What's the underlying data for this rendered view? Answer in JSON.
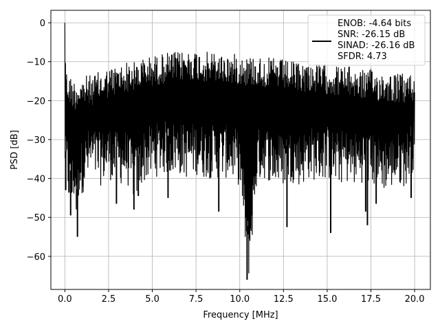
{
  "chart_data": {
    "type": "line",
    "title": "",
    "xlabel": "Frequency [MHz]",
    "ylabel": "PSD [dB]",
    "xlim": [
      -0.8,
      20.9
    ],
    "ylim": [
      -68.5,
      3.2
    ],
    "grid": true,
    "legend_position": "top-right",
    "x_ticks": [
      0.0,
      2.5,
      5.0,
      7.5,
      10.0,
      12.5,
      15.0,
      17.5,
      20.0
    ],
    "x_tick_labels": [
      "0.0",
      "2.5",
      "5.0",
      "7.5",
      "10.0",
      "12.5",
      "15.0",
      "17.5",
      "20.0"
    ],
    "y_ticks": [
      0,
      -10,
      -20,
      -30,
      -40,
      -50,
      -60
    ],
    "y_tick_labels": [
      "0",
      "−10",
      "−20",
      "−30",
      "−40",
      "−50",
      "−60"
    ],
    "legend": [
      "ENOB: -4.64 bits",
      "SNR: -26.15 dB",
      "SINAD: -26.16 dB",
      "SFDR: 4.73"
    ],
    "series": [
      {
        "color": "#000000",
        "x": [
          0.0,
          0.05,
          0.1,
          0.2,
          0.3,
          0.4,
          0.5,
          0.6,
          0.7,
          0.8,
          1.0,
          1.2,
          1.5,
          2.0,
          2.5,
          3.0,
          3.5,
          4.0,
          4.5,
          5.0,
          5.5,
          6.0,
          6.5,
          7.0,
          7.5,
          8.0,
          8.5,
          9.0,
          9.5,
          10.0,
          10.5,
          11.0,
          11.5,
          12.0,
          12.5,
          13.0,
          13.5,
          14.0,
          14.5,
          15.0,
          15.5,
          16.0,
          16.5,
          17.0,
          17.5,
          18.0,
          18.5,
          19.0,
          19.5,
          20.0
        ],
        "upper": [
          0.0,
          -8.0,
          -12.0,
          -13.0,
          -13.5,
          -14.0,
          -14.5,
          -14.5,
          -14.5,
          -14.0,
          -14.0,
          -13.5,
          -13.5,
          -12.5,
          -11.5,
          -11.0,
          -10.0,
          -10.0,
          -9.0,
          -8.5,
          -8.0,
          -7.5,
          -7.5,
          -7.0,
          -7.0,
          -7.5,
          -7.5,
          -8.0,
          -8.0,
          -8.0,
          -8.5,
          -8.5,
          -9.0,
          -9.0,
          -9.5,
          -10.0,
          -10.0,
          -10.0,
          -10.5,
          -10.5,
          -11.0,
          -11.0,
          -11.5,
          -12.0,
          -12.0,
          -12.5,
          -12.5,
          -13.0,
          -13.0,
          -13.0
        ],
        "lower": [
          -37.0,
          -43.0,
          -42.0,
          -46.0,
          -47.5,
          -49.0,
          -46.0,
          -47.0,
          -55.0,
          -44.0,
          -44.0,
          -42.0,
          -40.0,
          -42.0,
          -40.0,
          -42.0,
          -41.0,
          -46.0,
          -41.0,
          -40.0,
          -39.0,
          -39.0,
          -39.0,
          -40.0,
          -39.0,
          -40.0,
          -40.0,
          -40.0,
          -40.0,
          -42.0,
          -66.0,
          -41.0,
          -40.0,
          -42.0,
          -42.0,
          -41.0,
          -42.0,
          -40.0,
          -41.0,
          -40.0,
          -42.0,
          -41.0,
          -42.0,
          -41.0,
          -42.0,
          -43.0,
          -43.0,
          -42.0,
          -42.0,
          -37.0
        ],
        "spikes": [
          {
            "x": 0.05,
            "y": -43.0
          },
          {
            "x": 0.33,
            "y": -49.5
          },
          {
            "x": 0.72,
            "y": -55.0
          },
          {
            "x": 2.95,
            "y": -46.5
          },
          {
            "x": 3.95,
            "y": -48.0
          },
          {
            "x": 4.2,
            "y": -44.5
          },
          {
            "x": 5.9,
            "y": -45.0
          },
          {
            "x": 8.8,
            "y": -48.5
          },
          {
            "x": 10.6,
            "y": -46.5
          },
          {
            "x": 10.42,
            "y": -66.0
          },
          {
            "x": 12.7,
            "y": -52.5
          },
          {
            "x": 15.2,
            "y": -54.0
          },
          {
            "x": 17.2,
            "y": -48.5
          },
          {
            "x": 17.3,
            "y": -52.0
          },
          {
            "x": 17.8,
            "y": -46.5
          },
          {
            "x": 19.8,
            "y": -45.0
          }
        ]
      }
    ]
  }
}
